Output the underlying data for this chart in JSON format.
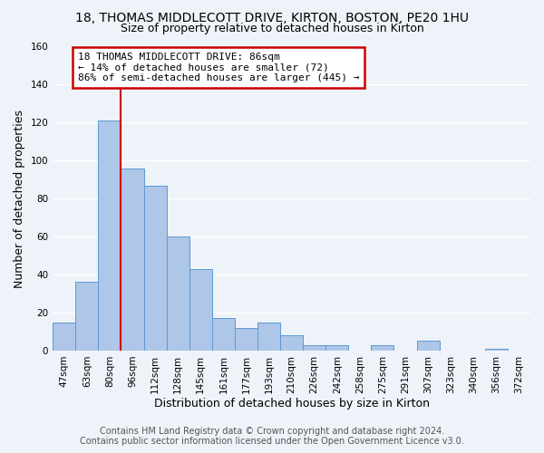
{
  "title": "18, THOMAS MIDDLECOTT DRIVE, KIRTON, BOSTON, PE20 1HU",
  "subtitle": "Size of property relative to detached houses in Kirton",
  "xlabel": "Distribution of detached houses by size in Kirton",
  "ylabel": "Number of detached properties",
  "bar_labels": [
    "47sqm",
    "63sqm",
    "80sqm",
    "96sqm",
    "112sqm",
    "128sqm",
    "145sqm",
    "161sqm",
    "177sqm",
    "193sqm",
    "210sqm",
    "226sqm",
    "242sqm",
    "258sqm",
    "275sqm",
    "291sqm",
    "307sqm",
    "323sqm",
    "340sqm",
    "356sqm",
    "372sqm"
  ],
  "bar_values": [
    15,
    36,
    121,
    96,
    87,
    60,
    43,
    17,
    12,
    15,
    8,
    3,
    3,
    0,
    3,
    0,
    5,
    0,
    0,
    1,
    0
  ],
  "bar_color": "#aec6e8",
  "bar_edge_color": "#5b9bd5",
  "vline_index": 2,
  "vline_color": "#cc0000",
  "ylim": [
    0,
    160
  ],
  "yticks": [
    0,
    20,
    40,
    60,
    80,
    100,
    120,
    140,
    160
  ],
  "annotation_title": "18 THOMAS MIDDLECOTT DRIVE: 86sqm",
  "annotation_line1": "← 14% of detached houses are smaller (72)",
  "annotation_line2": "86% of semi-detached houses are larger (445) →",
  "annotation_box_color": "#ffffff",
  "annotation_box_edge": "#cc0000",
  "footer1": "Contains HM Land Registry data © Crown copyright and database right 2024.",
  "footer2": "Contains public sector information licensed under the Open Government Licence v3.0.",
  "bg_color": "#eef2f9",
  "grid_color": "#ffffff",
  "title_fontsize": 10,
  "subtitle_fontsize": 9,
  "axis_label_fontsize": 9,
  "tick_fontsize": 7.5,
  "footer_fontsize": 7,
  "annotation_fontsize": 8
}
